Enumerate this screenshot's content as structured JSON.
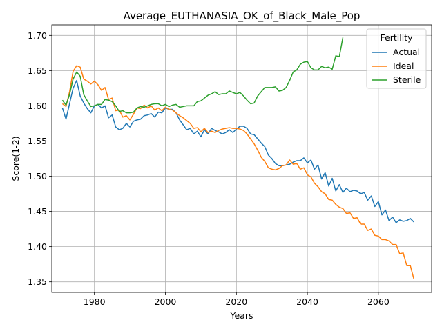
{
  "chart_data": {
    "type": "line",
    "title": "Average_EUTHANASIA_OK_of_Black_Male_Pop",
    "xlabel": "Years",
    "ylabel": "Score(1-2)",
    "xlim": [
      1968,
      2075
    ],
    "ylim": [
      1.335,
      1.715
    ],
    "xticks": [
      1980,
      2000,
      2020,
      2040,
      2060
    ],
    "yticks": [
      1.35,
      1.4,
      1.45,
      1.5,
      1.55,
      1.6,
      1.65,
      1.7
    ],
    "xtick_labels": [
      "1980",
      "2000",
      "2020",
      "2040",
      "2060"
    ],
    "ytick_labels": [
      "1.35",
      "1.40",
      "1.45",
      "1.50",
      "1.55",
      "1.60",
      "1.65",
      "1.70"
    ],
    "grid": true,
    "legend": {
      "title": "Fertility",
      "position": "upper right"
    },
    "series": [
      {
        "name": "Actual",
        "color": "#1f77b4",
        "x": [
          1971,
          1972,
          1973,
          1974,
          1975,
          1976,
          1977,
          1978,
          1979,
          1980,
          1981,
          1982,
          1983,
          1984,
          1985,
          1986,
          1987,
          1988,
          1989,
          1990,
          1991,
          1992,
          1993,
          1994,
          1995,
          1996,
          1997,
          1998,
          1999,
          2000,
          2001,
          2002,
          2003,
          2004,
          2005,
          2006,
          2007,
          2008,
          2009,
          2010,
          2011,
          2012,
          2013,
          2014,
          2015,
          2016,
          2017,
          2018,
          2019,
          2020,
          2021,
          2022,
          2023,
          2024,
          2025,
          2026,
          2027,
          2028,
          2029,
          2030,
          2031,
          2032,
          2033,
          2034,
          2035,
          2036,
          2037,
          2038,
          2039,
          2040,
          2041,
          2042,
          2043,
          2044,
          2045,
          2046,
          2047,
          2048,
          2049,
          2050,
          2051,
          2052,
          2053,
          2054,
          2055,
          2056,
          2057,
          2058,
          2059,
          2060,
          2061,
          2062,
          2063,
          2064,
          2065,
          2066,
          2067,
          2068,
          2069,
          2070
        ],
        "values": [
          1.597,
          1.581,
          1.603,
          1.625,
          1.636,
          1.614,
          1.604,
          1.596,
          1.59,
          1.6,
          1.602,
          1.597,
          1.6,
          1.583,
          1.587,
          1.57,
          1.566,
          1.568,
          1.575,
          1.57,
          1.578,
          1.58,
          1.581,
          1.586,
          1.587,
          1.589,
          1.584,
          1.591,
          1.59,
          1.597,
          1.595,
          1.595,
          1.59,
          1.58,
          1.573,
          1.566,
          1.568,
          1.56,
          1.564,
          1.556,
          1.566,
          1.56,
          1.568,
          1.565,
          1.563,
          1.56,
          1.562,
          1.566,
          1.562,
          1.567,
          1.571,
          1.571,
          1.568,
          1.56,
          1.559,
          1.553,
          1.547,
          1.542,
          1.53,
          1.525,
          1.518,
          1.515,
          1.515,
          1.516,
          1.517,
          1.52,
          1.522,
          1.522,
          1.526,
          1.519,
          1.523,
          1.51,
          1.516,
          1.496,
          1.505,
          1.486,
          1.497,
          1.479,
          1.488,
          1.477,
          1.483,
          1.478,
          1.48,
          1.479,
          1.475,
          1.477,
          1.466,
          1.472,
          1.457,
          1.464,
          1.445,
          1.452,
          1.437,
          1.442,
          1.434,
          1.438,
          1.436,
          1.437,
          1.44,
          1.435
        ]
      },
      {
        "name": "Ideal",
        "color": "#ff7f0e",
        "x": [
          1971,
          1972,
          1973,
          1974,
          1975,
          1976,
          1977,
          1978,
          1979,
          1980,
          1981,
          1982,
          1983,
          1984,
          1985,
          1986,
          1987,
          1988,
          1989,
          1990,
          1991,
          1992,
          1993,
          1994,
          1995,
          1996,
          1997,
          1998,
          1999,
          2000,
          2001,
          2002,
          2003,
          2004,
          2005,
          2006,
          2007,
          2008,
          2009,
          2010,
          2011,
          2012,
          2013,
          2014,
          2015,
          2016,
          2017,
          2018,
          2019,
          2020,
          2021,
          2022,
          2023,
          2024,
          2025,
          2026,
          2027,
          2028,
          2029,
          2030,
          2031,
          2032,
          2033,
          2034,
          2035,
          2036,
          2037,
          2038,
          2039,
          2040,
          2041,
          2042,
          2043,
          2044,
          2045,
          2046,
          2047,
          2048,
          2049,
          2050,
          2051,
          2052,
          2053,
          2054,
          2055,
          2056,
          2057,
          2058,
          2059,
          2060,
          2061,
          2062,
          2063,
          2064,
          2065,
          2066,
          2067,
          2068,
          2069,
          2070
        ],
        "values": [
          1.603,
          1.599,
          1.62,
          1.649,
          1.657,
          1.655,
          1.638,
          1.635,
          1.631,
          1.635,
          1.63,
          1.622,
          1.626,
          1.609,
          1.611,
          1.593,
          1.594,
          1.584,
          1.586,
          1.58,
          1.588,
          1.597,
          1.596,
          1.601,
          1.597,
          1.6,
          1.594,
          1.597,
          1.593,
          1.598,
          1.595,
          1.594,
          1.59,
          1.586,
          1.583,
          1.579,
          1.575,
          1.568,
          1.569,
          1.563,
          1.568,
          1.562,
          1.564,
          1.562,
          1.565,
          1.567,
          1.568,
          1.569,
          1.568,
          1.568,
          1.567,
          1.565,
          1.56,
          1.553,
          1.546,
          1.537,
          1.527,
          1.521,
          1.512,
          1.51,
          1.509,
          1.511,
          1.515,
          1.516,
          1.523,
          1.517,
          1.518,
          1.51,
          1.512,
          1.502,
          1.499,
          1.49,
          1.485,
          1.478,
          1.475,
          1.467,
          1.466,
          1.46,
          1.456,
          1.454,
          1.447,
          1.448,
          1.44,
          1.441,
          1.432,
          1.432,
          1.423,
          1.425,
          1.416,
          1.415,
          1.41,
          1.41,
          1.408,
          1.403,
          1.403,
          1.39,
          1.391,
          1.373,
          1.373,
          1.354
        ]
      },
      {
        "name": "Sterile",
        "color": "#2ca02c",
        "x": [
          1971,
          1972,
          1973,
          1974,
          1975,
          1976,
          1977,
          1978,
          1979,
          1980,
          1981,
          1982,
          1983,
          1984,
          1985,
          1986,
          1987,
          1988,
          1989,
          1990,
          1991,
          1992,
          1993,
          1994,
          1995,
          1996,
          1997,
          1998,
          1999,
          2000,
          2001,
          2002,
          2003,
          2004,
          2005,
          2006,
          2007,
          2008,
          2009,
          2010,
          2011,
          2012,
          2013,
          2014,
          2015,
          2016,
          2017,
          2018,
          2019,
          2020,
          2021,
          2022,
          2023,
          2024,
          2025,
          2026,
          2027,
          2028,
          2029,
          2030,
          2031,
          2032,
          2033,
          2034,
          2035,
          2036,
          2037,
          2038,
          2039,
          2040,
          2041,
          2042,
          2043,
          2044,
          2045,
          2046,
          2047,
          2048,
          2049,
          2050
        ],
        "values": [
          1.608,
          1.601,
          1.616,
          1.638,
          1.648,
          1.642,
          1.616,
          1.607,
          1.599,
          1.6,
          1.602,
          1.602,
          1.609,
          1.608,
          1.606,
          1.6,
          1.592,
          1.593,
          1.59,
          1.59,
          1.591,
          1.597,
          1.599,
          1.598,
          1.6,
          1.602,
          1.603,
          1.603,
          1.6,
          1.602,
          1.599,
          1.601,
          1.602,
          1.598,
          1.599,
          1.6,
          1.6,
          1.6,
          1.606,
          1.607,
          1.611,
          1.615,
          1.617,
          1.62,
          1.616,
          1.617,
          1.617,
          1.621,
          1.619,
          1.617,
          1.619,
          1.614,
          1.608,
          1.603,
          1.604,
          1.614,
          1.62,
          1.626,
          1.626,
          1.626,
          1.627,
          1.621,
          1.622,
          1.626,
          1.636,
          1.648,
          1.651,
          1.659,
          1.662,
          1.663,
          1.654,
          1.651,
          1.651,
          1.656,
          1.654,
          1.655,
          1.652,
          1.671,
          1.67,
          1.697
        ]
      }
    ]
  }
}
